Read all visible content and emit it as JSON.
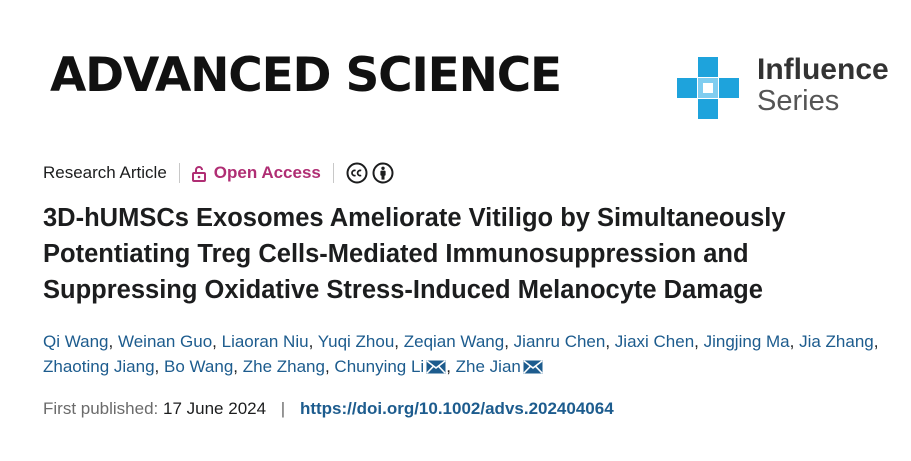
{
  "journal": {
    "name": "ADVANCED SCIENCE"
  },
  "series": {
    "line1": "Influence",
    "line2": "Series",
    "accent": "#1ea3dc"
  },
  "article": {
    "type": "Research Article",
    "access": "Open Access",
    "license_icons": [
      "cc-icon",
      "by-icon"
    ],
    "title": "3D-hUMSCs Exosomes Ameliorate Vitiligo by Simultaneously Potentiating Treg Cells-Mediated Immunosuppression and Suppressing Oxidative Stress-Induced Melanocyte Damage"
  },
  "authors": [
    {
      "name": "Qi Wang",
      "mail": false
    },
    {
      "name": "Weinan Guo",
      "mail": false
    },
    {
      "name": "Liaoran Niu",
      "mail": false
    },
    {
      "name": "Yuqi Zhou",
      "mail": false
    },
    {
      "name": "Zeqian Wang",
      "mail": false
    },
    {
      "name": "Jianru Chen",
      "mail": false
    },
    {
      "name": "Jiaxi Chen",
      "mail": false
    },
    {
      "name": "Jingjing Ma",
      "mail": false
    },
    {
      "name": "Jia Zhang",
      "mail": false
    },
    {
      "name": "Zhaoting Jiang",
      "mail": false
    },
    {
      "name": "Bo Wang",
      "mail": false
    },
    {
      "name": "Zhe Zhang",
      "mail": false
    },
    {
      "name": "Chunying Li",
      "mail": true
    },
    {
      "name": "Zhe Jian",
      "mail": true
    }
  ],
  "publication": {
    "label": "First published:",
    "date": "17 June 2024",
    "separator": "|",
    "doi": "https://doi.org/10.1002/advs.202404064"
  },
  "colors": {
    "link": "#1d5c8e",
    "open_access": "#b02e74"
  }
}
